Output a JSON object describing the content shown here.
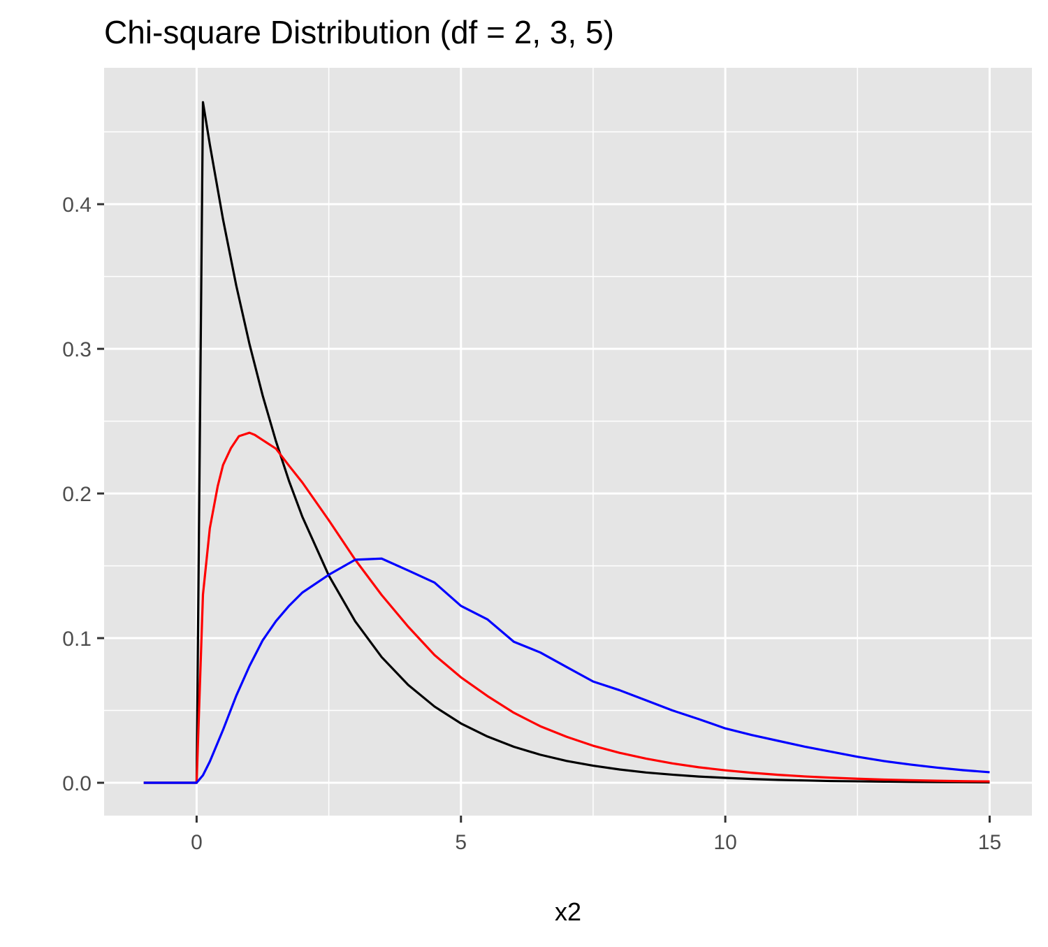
{
  "chart_data": {
    "type": "line",
    "title": "Chi-square Distribution (df = 2, 3, 5)",
    "xlabel": "x2",
    "ylabel": "",
    "xlim": [
      -1.75,
      15.8
    ],
    "ylim": [
      -0.0227,
      0.4943
    ],
    "x_ticks": [
      0,
      5,
      10,
      15
    ],
    "x_tick_labels": [
      "0",
      "5",
      "10",
      "15"
    ],
    "y_ticks": [
      0.0,
      0.1,
      0.2,
      0.3,
      0.4
    ],
    "y_tick_labels": [
      "0.0",
      "0.1",
      "0.2",
      "0.3",
      "0.4"
    ],
    "x_minor_ticks": [
      2.5,
      7.5,
      12.5
    ],
    "y_minor_ticks": [
      0.05,
      0.15,
      0.25,
      0.35,
      0.45
    ],
    "grid": true,
    "panel_background": "#e5e5e5",
    "grid_color": "#ffffff",
    "series": [
      {
        "color": "#000000",
        "x": [
          -1,
          -0.5,
          0,
          0.12,
          0.25,
          0.5,
          0.75,
          1,
          1.25,
          1.5,
          1.75,
          2,
          2.5,
          3,
          3.5,
          4,
          4.5,
          5,
          5.5,
          6,
          6.5,
          7,
          7.5,
          8,
          8.5,
          9,
          9.5,
          10,
          10.5,
          11,
          11.5,
          12,
          12.5,
          13,
          13.5,
          14,
          14.5,
          15
        ],
        "y": [
          0,
          0,
          0,
          0.4705,
          0.4412,
          0.3894,
          0.3437,
          0.3033,
          0.2676,
          0.2362,
          0.2084,
          0.1839,
          0.1433,
          0.1116,
          0.0869,
          0.0677,
          0.0527,
          0.041,
          0.032,
          0.0249,
          0.0194,
          0.0151,
          0.0118,
          0.0092,
          0.0071,
          0.0056,
          0.0043,
          0.0034,
          0.0026,
          0.002,
          0.0016,
          0.0012,
          0.001,
          0.0008,
          0.0006,
          0.0005,
          0.0004,
          0.0003
        ]
      },
      {
        "color": "#ff0000",
        "x": [
          -1,
          -0.5,
          0,
          0.12,
          0.25,
          0.4,
          0.5,
          0.65,
          0.8,
          0.9,
          1,
          1.1,
          1.25,
          1.5,
          1.75,
          2,
          2.5,
          3,
          3.5,
          4,
          4.5,
          5,
          5.5,
          6,
          6.5,
          7,
          7.5,
          8,
          8.5,
          9,
          9.5,
          10,
          10.5,
          11,
          11.5,
          12,
          12.5,
          13,
          13.5,
          14,
          14.5,
          15
        ],
        "y": [
          0,
          0,
          0,
          0.1301,
          0.176,
          0.2052,
          0.2197,
          0.2314,
          0.2396,
          0.2408,
          0.242,
          0.2405,
          0.2369,
          0.231,
          0.2191,
          0.2076,
          0.1815,
          0.1542,
          0.1298,
          0.108,
          0.0883,
          0.0729,
          0.06,
          0.0484,
          0.0391,
          0.0318,
          0.0256,
          0.0207,
          0.0167,
          0.0134,
          0.0107,
          0.0086,
          0.0069,
          0.0055,
          0.0044,
          0.0035,
          0.0028,
          0.0022,
          0.0018,
          0.0014,
          0.0011,
          0.0009
        ]
      },
      {
        "color": "#0000ff",
        "x": [
          -1,
          -0.5,
          0,
          0.12,
          0.25,
          0.5,
          0.75,
          1,
          1.25,
          1.5,
          1.75,
          2,
          2.5,
          3,
          3.5,
          4,
          4.5,
          5,
          5.5,
          6,
          6.5,
          7,
          7.5,
          8,
          8.5,
          9,
          9.5,
          10,
          10.5,
          11,
          11.5,
          12,
          12.5,
          13,
          13.5,
          14,
          14.5,
          15
        ],
        "y": [
          0,
          0,
          0,
          0.0052,
          0.0147,
          0.0366,
          0.0602,
          0.0807,
          0.0985,
          0.1117,
          0.1224,
          0.1315,
          0.1438,
          0.1542,
          0.155,
          0.1468,
          0.1384,
          0.1223,
          0.113,
          0.0975,
          0.0901,
          0.08,
          0.07,
          0.064,
          0.057,
          0.05,
          0.044,
          0.0376,
          0.033,
          0.029,
          0.025,
          0.0215,
          0.018,
          0.015,
          0.0126,
          0.0105,
          0.0087,
          0.0073
        ]
      }
    ]
  }
}
